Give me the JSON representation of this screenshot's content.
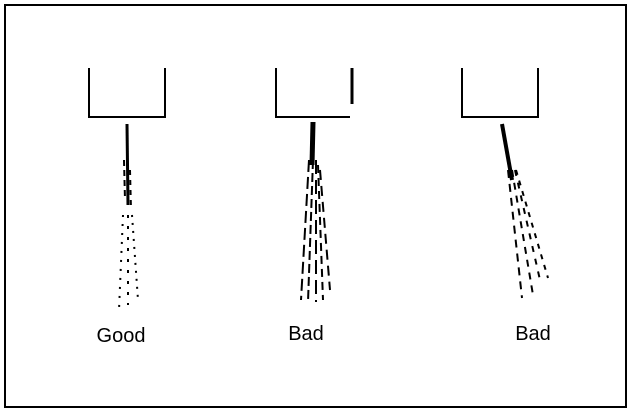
{
  "labels": [
    "Good",
    "Bad",
    "Bad"
  ]
}
